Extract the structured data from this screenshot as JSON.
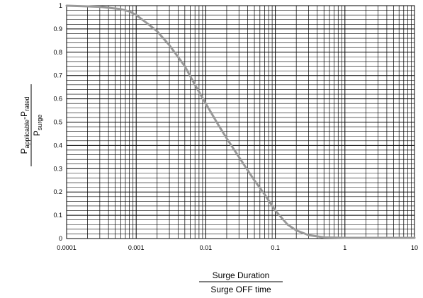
{
  "chart_data": {
    "type": "line",
    "title": "",
    "xscale": "log",
    "xlim": [
      0.0001,
      10
    ],
    "ylim": [
      0,
      1
    ],
    "grid": true,
    "legend": "none",
    "x_ticks": [
      "0.0001",
      "0.001",
      "0.01",
      "0.1",
      "1",
      "10"
    ],
    "y_ticks": [
      "0",
      "0.1",
      "0.2",
      "0.3",
      "0.4",
      "0.5",
      "0.6",
      "0.7",
      "0.8",
      "0.9",
      "1"
    ],
    "xlabel": {
      "numerator": "Surge Duration",
      "denominator": "Surge OFF time"
    },
    "ylabel": {
      "numerator_main_1": "P",
      "numerator_sub_1": "applicable",
      "numerator_minus": "-P",
      "numerator_sub_2": "rated",
      "denominator_main": "P",
      "denominator_sub": "surge"
    },
    "series": [
      {
        "color": "#999999",
        "x": [
          0.0001,
          0.0003,
          0.0006,
          0.0008,
          0.001,
          0.0015,
          0.002,
          0.003,
          0.005,
          0.007,
          0.01,
          0.015,
          0.02,
          0.03,
          0.05,
          0.07,
          0.1,
          0.15,
          0.2,
          0.3,
          0.5,
          1,
          10
        ],
        "y": [
          1.0,
          0.995,
          0.985,
          0.975,
          0.96,
          0.92,
          0.89,
          0.83,
          0.74,
          0.66,
          0.58,
          0.49,
          0.43,
          0.35,
          0.25,
          0.19,
          0.12,
          0.06,
          0.035,
          0.015,
          0.005,
          0.003,
          0.003
        ]
      }
    ]
  }
}
